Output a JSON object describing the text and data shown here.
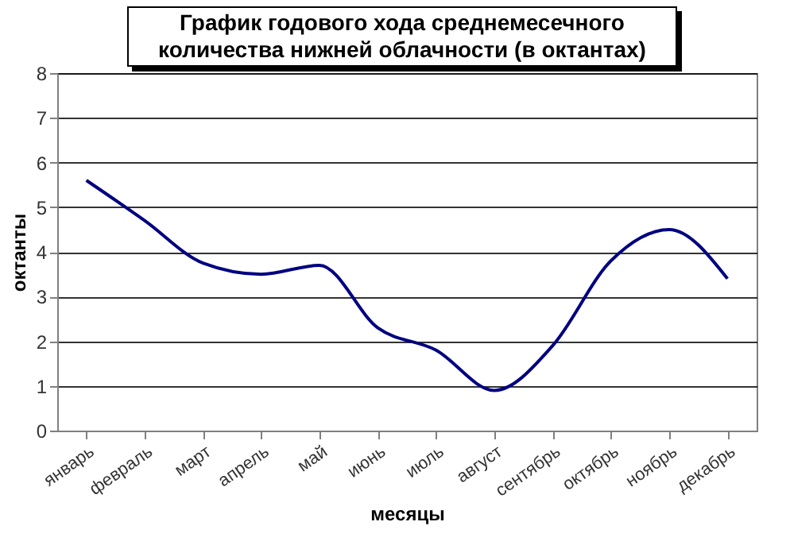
{
  "chart_data": {
    "type": "line",
    "title": "График годового хода среднемесечного количества нижней облачности (в октантах)",
    "xlabel": "месяцы",
    "ylabel": "октанты",
    "categories": [
      "январь",
      "февраль",
      "март",
      "апрель",
      "май",
      "июнь",
      "июль",
      "август",
      "сентябрь",
      "октябрь",
      "ноябрь",
      "декабрь"
    ],
    "series": [
      {
        "color": "#000080",
        "values": [
          5.6,
          4.7,
          3.75,
          3.5,
          3.7,
          2.3,
          1.8,
          0.9,
          1.9,
          3.8,
          4.5,
          3.4
        ]
      }
    ],
    "ylim": [
      0,
      8
    ],
    "yticks": [
      0,
      1,
      2,
      3,
      4,
      5,
      6,
      7,
      8
    ],
    "grid": true,
    "marker": "none",
    "line_style": "solid"
  }
}
